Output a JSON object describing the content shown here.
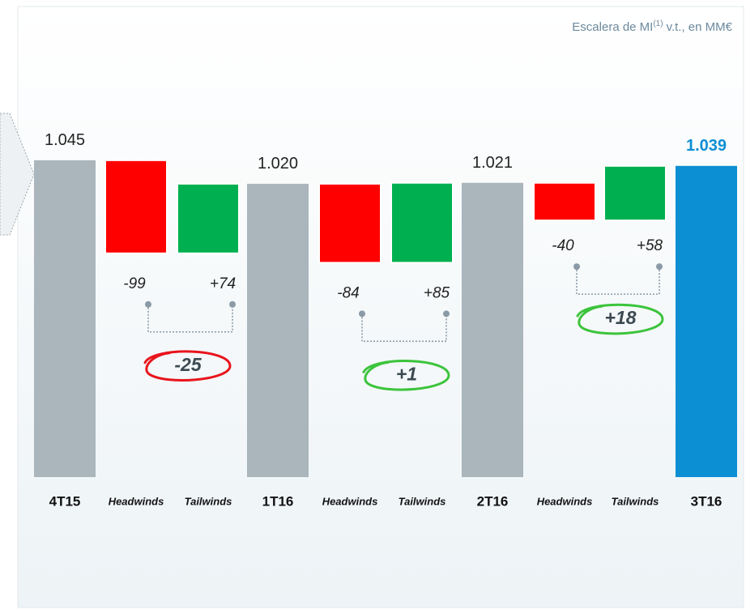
{
  "chart_data": {
    "type": "waterfall",
    "subtitle": [
      "Escalera de MI",
      "(1)",
      "v.t., en MM€"
    ],
    "categories": [
      "4T15",
      "Headwinds",
      "Tailwinds",
      "1T16",
      "Headwinds",
      "Tailwinds",
      "2T16",
      "Headwinds",
      "Tailwinds",
      "3T16"
    ],
    "measure": [
      "absolute",
      "relative",
      "relative",
      "absolute",
      "relative",
      "relative",
      "absolute",
      "relative",
      "relative",
      "absolute"
    ],
    "values": [
      1045,
      -99,
      74,
      1020,
      -84,
      85,
      1021,
      -40,
      58,
      1039
    ],
    "value_labels": [
      "1.045",
      "-99",
      "+74",
      "1.020",
      "-84",
      "+85",
      "1.021",
      "-40",
      "+58",
      "1.039"
    ],
    "colors": [
      "#aab5bc",
      "#ff0000",
      "#00b050",
      "#aab5bc",
      "#ff0000",
      "#00b050",
      "#aab5bc",
      "#ff0000",
      "#00b050",
      "#0d8fd3"
    ],
    "net": [
      {
        "value": -25,
        "label": "-25",
        "color": "#e8141c"
      },
      {
        "value": 1,
        "label": "+1",
        "color": "#3cc43c"
      },
      {
        "value": 18,
        "label": "+18",
        "color": "#3cc43c"
      }
    ],
    "ylim": [
      708,
      1100
    ]
  }
}
